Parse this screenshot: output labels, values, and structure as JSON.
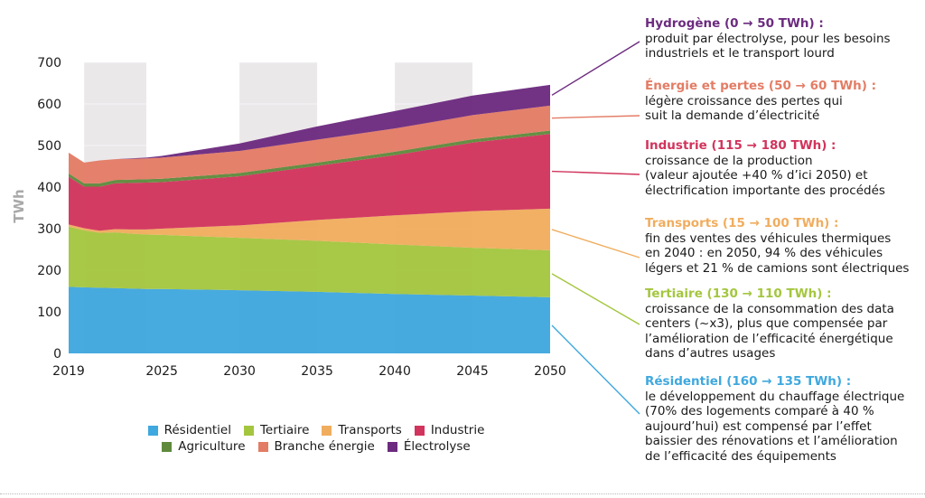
{
  "chart_data": {
    "type": "area",
    "stacked": true,
    "title": "",
    "ylabel": "TWh",
    "xlabel": "",
    "x": [
      2019,
      2020,
      2021,
      2022,
      2023,
      2024,
      2025,
      2030,
      2035,
      2040,
      2045,
      2050
    ],
    "xticks": [
      2019,
      2025,
      2030,
      2035,
      2040,
      2045,
      2050
    ],
    "yticks": [
      0,
      100,
      200,
      300,
      400,
      500,
      600,
      700
    ],
    "ylim": [
      0,
      700
    ],
    "xlim": [
      2019,
      2050
    ],
    "shaded_bands": [
      [
        2020,
        2024
      ],
      [
        2030,
        2035
      ],
      [
        2040,
        2045
      ]
    ],
    "series": [
      {
        "name": "Résidentiel",
        "color": "#3fa8de",
        "values": [
          160,
          159,
          158,
          157,
          156,
          155,
          155,
          152,
          148,
          143,
          139,
          135
        ]
      },
      {
        "name": "Tertiaire",
        "color": "#a4c63f",
        "values": [
          145,
          137,
          132,
          134,
          132,
          131,
          130,
          126,
          123,
          119,
          115,
          113
        ]
      },
      {
        "name": "Transports",
        "color": "#f0ad5e",
        "values": [
          5,
          5,
          5,
          8,
          10,
          12,
          15,
          30,
          50,
          70,
          88,
          100
        ]
      },
      {
        "name": "Industrie",
        "color": "#d1345c",
        "values": [
          115,
          100,
          106,
          110,
          112,
          113,
          112,
          118,
          130,
          145,
          165,
          180
        ]
      },
      {
        "name": "Agriculture",
        "color": "#5f8a3c",
        "values": [
          8,
          8,
          8,
          8,
          8,
          8,
          8,
          8,
          8,
          8,
          8,
          8
        ]
      },
      {
        "name": "Branche énergie",
        "color": "#e37c65",
        "values": [
          50,
          50,
          55,
          50,
          50,
          50,
          51,
          53,
          55,
          56,
          58,
          60
        ]
      },
      {
        "name": "Électrolyse",
        "color": "#6c2b7f",
        "values": [
          0,
          0,
          0,
          0,
          1,
          2,
          4,
          18,
          32,
          42,
          47,
          50
        ]
      }
    ],
    "legend": {
      "rows": [
        [
          "Résidentiel",
          "Tertiaire",
          "Transports",
          "Industrie"
        ],
        [
          "Agriculture",
          "Branche énergie",
          "Électrolyse"
        ]
      ]
    }
  },
  "annotations": [
    {
      "series": "Électrolyse",
      "title": "Hydrogène (0 → 50 TWh) :",
      "title_color": "#6c2b7f",
      "text": "produit par électrolyse, pour les besoins\nindustriels et le transport lourd",
      "line_color": "#6c2b7f"
    },
    {
      "series": "Branche énergie",
      "title": "Énergie et pertes (50 → 60 TWh) :",
      "title_color": "#e37c65",
      "text": "légère croissance des pertes qui\nsuit la demande d’électricité",
      "line_color": "#e37c65"
    },
    {
      "series": "Industrie",
      "title": "Industrie (115 → 180 TWh) :",
      "title_color": "#d1345c",
      "text": "croissance de la production\n(valeur ajoutée +40 % d’ici 2050) et\nélectrification importante des procédés",
      "line_color": "#d1345c"
    },
    {
      "series": "Transports",
      "title": "Transports (15 → 100 TWh) :",
      "title_color": "#f0ad5e",
      "text": "fin des ventes des véhicules thermiques\nen 2040 : en 2050, 94 % des véhicules\nlégers et 21 % de camions sont électriques",
      "line_color": "#f0ad5e"
    },
    {
      "series": "Tertiaire",
      "title": "Tertiaire (130 → 110 TWh) :",
      "title_color": "#a4c63f",
      "text": "croissance de la consommation des data\ncenters (~x3), plus que compensée par\nl’amélioration de l’efficacité énergétique\ndans d’autres usages",
      "line_color": "#a4c63f"
    },
    {
      "series": "Résidentiel",
      "title": "Résidentiel (160 → 135 TWh) :",
      "title_color": "#3fa8de",
      "text": "le développement du chauffage électrique\n(70% des logements comparé à 40 %\naujourd’hui) est compensé par l’effet\nbaissier des rénovations et l’amélioration\nde l’efficacité des équipements",
      "line_color": "#3fa8de"
    }
  ]
}
